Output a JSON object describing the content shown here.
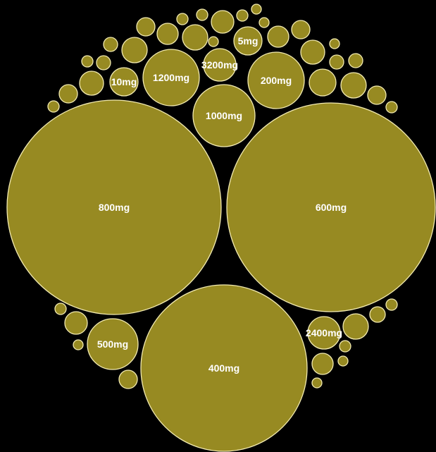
{
  "colors": {
    "background": "#000000",
    "bubble_fill": "#978a22",
    "bubble_stroke": "#f3ebb0",
    "label": "#ffffff"
  },
  "chart_data": {
    "type": "bubble-pack",
    "title": "",
    "labeled_bubbles": [
      {
        "label": "800mg"
      },
      {
        "label": "600mg"
      },
      {
        "label": "400mg"
      },
      {
        "label": "1000mg"
      },
      {
        "label": "1200mg"
      },
      {
        "label": "200mg"
      },
      {
        "label": "500mg"
      },
      {
        "label": "3200mg"
      },
      {
        "label": "5mg"
      },
      {
        "label": "10mg"
      },
      {
        "label": "2400mg"
      }
    ],
    "unlabeled_bubble_count": 40
  }
}
